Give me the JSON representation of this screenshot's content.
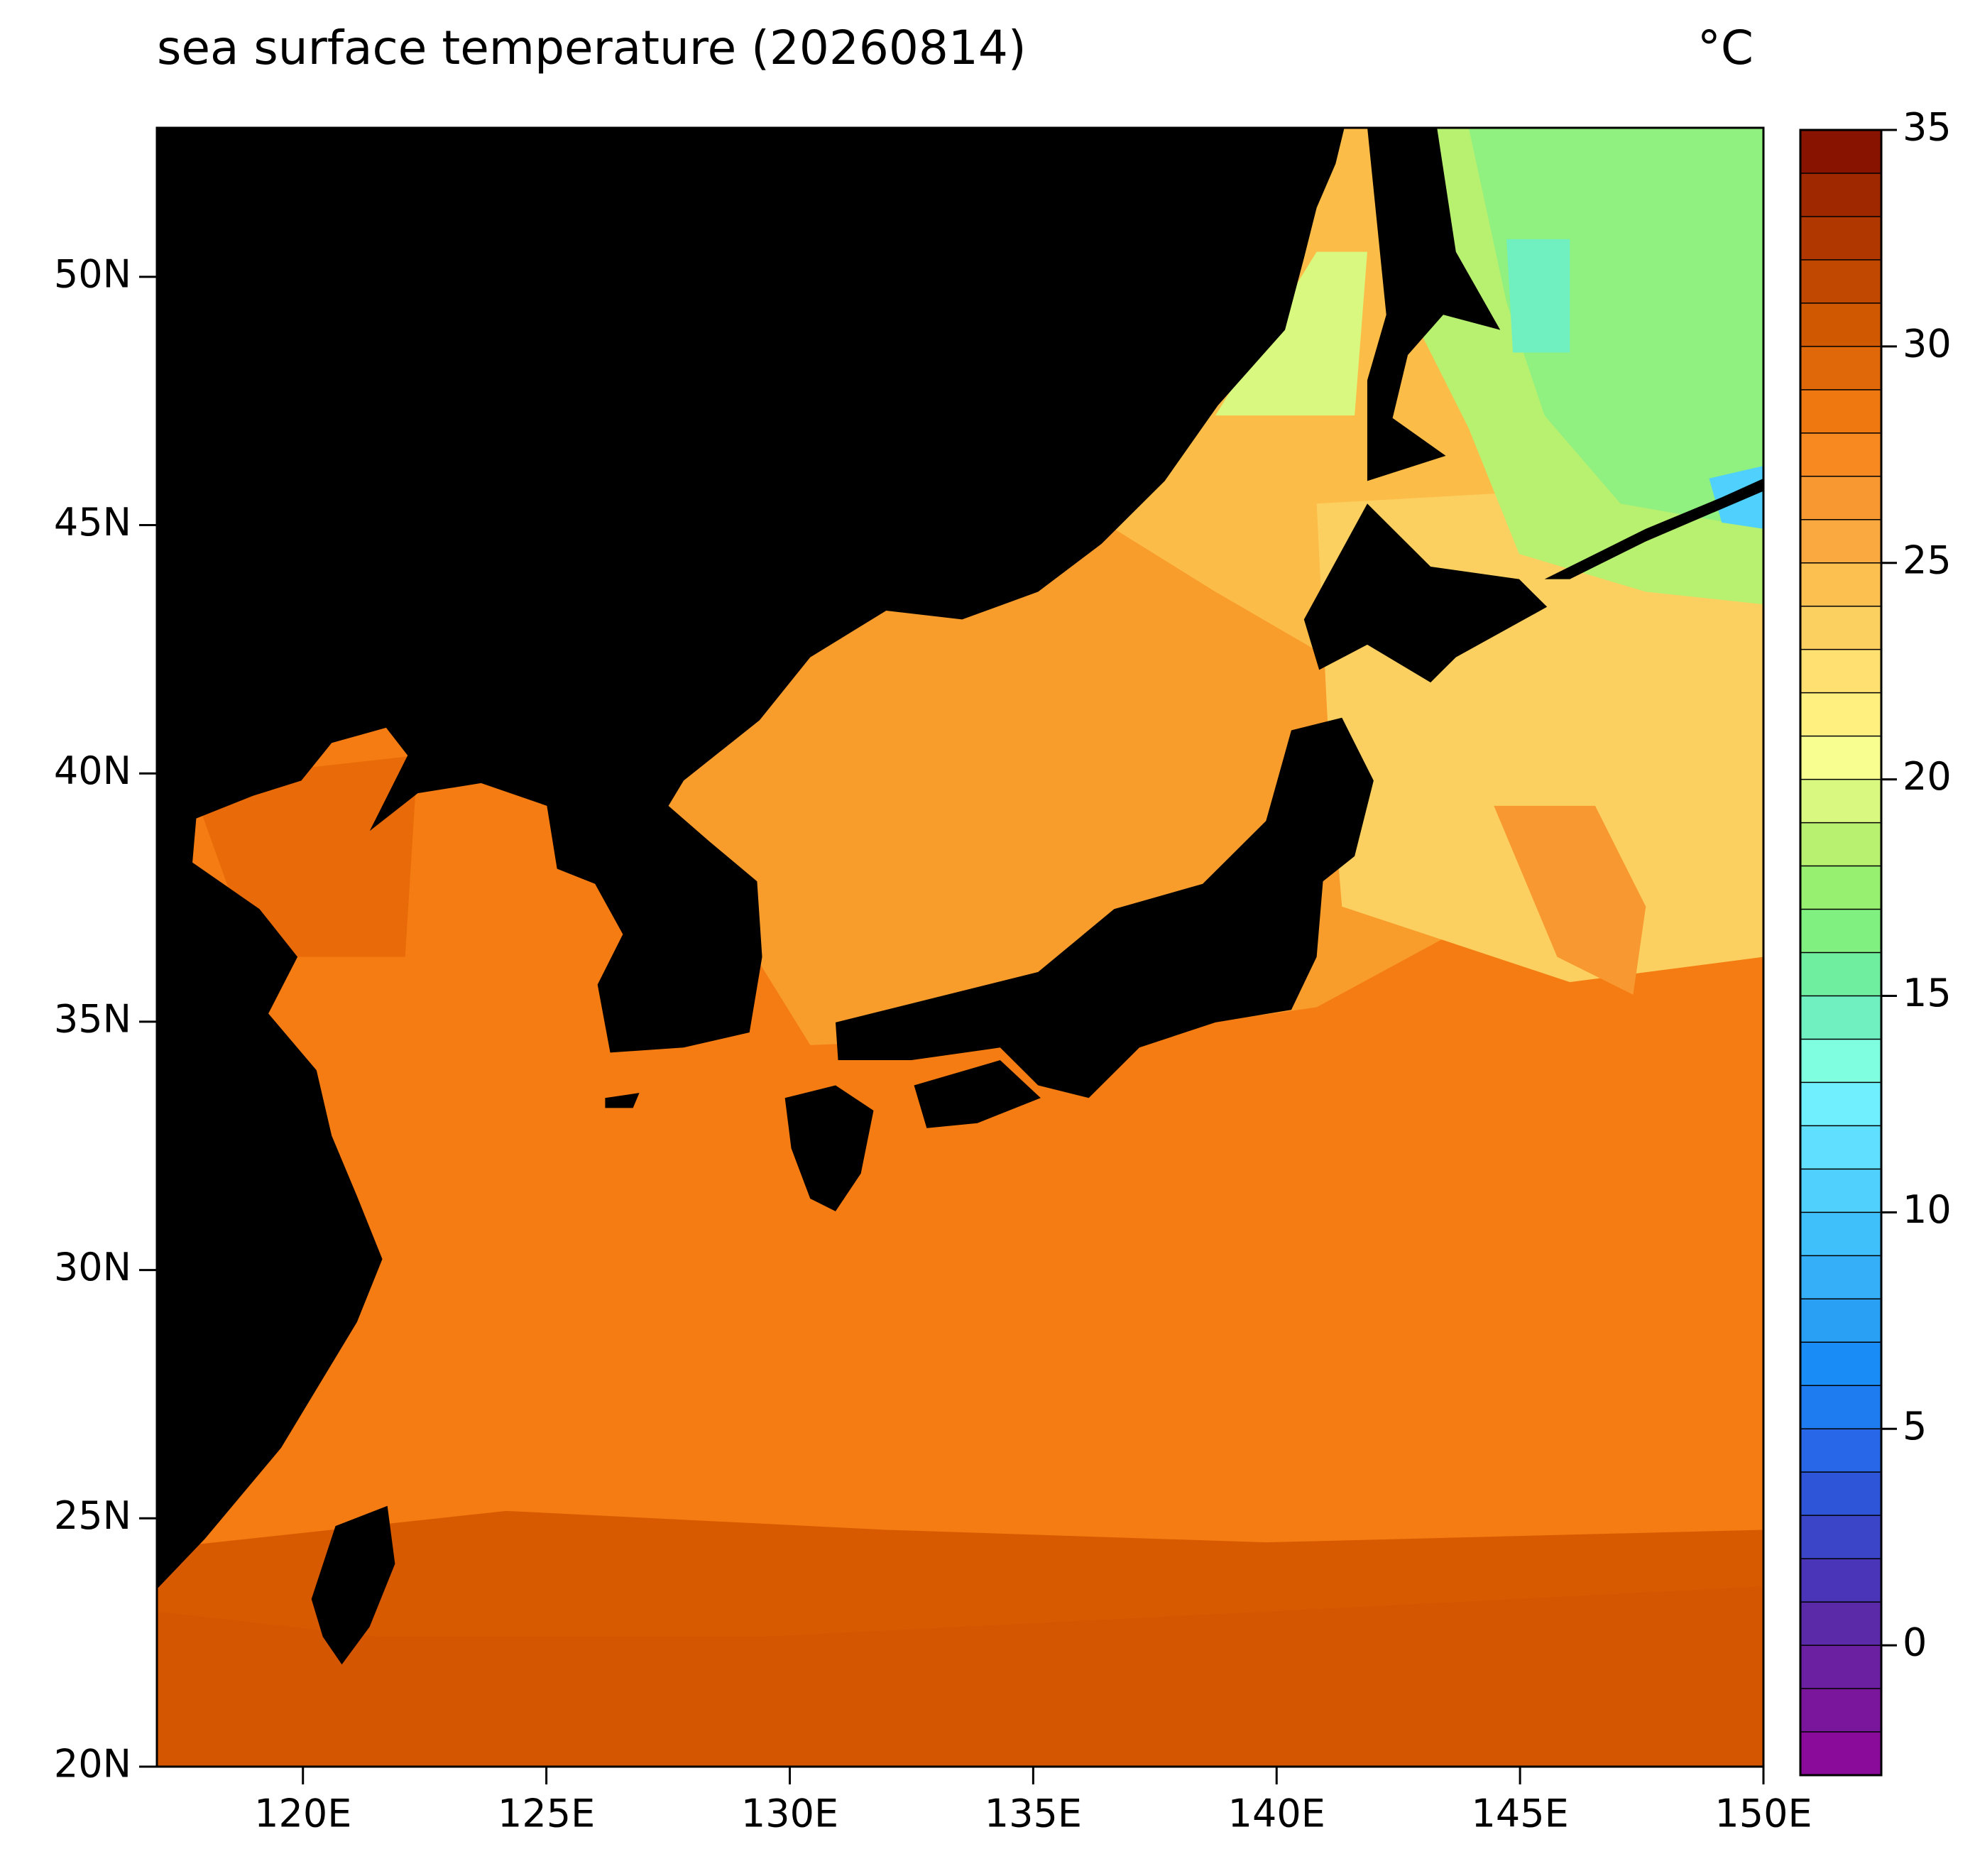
{
  "chart_data": {
    "type": "map",
    "title": "sea surface temperature (20260814)",
    "unit": "°C",
    "xlim": [
      117,
      150
    ],
    "ylim": [
      20,
      53
    ],
    "xticks": [
      {
        "value": 120,
        "label": "120E"
      },
      {
        "value": 125,
        "label": "125E"
      },
      {
        "value": 130,
        "label": "130E"
      },
      {
        "value": 135,
        "label": "135E"
      },
      {
        "value": 140,
        "label": "140E"
      },
      {
        "value": 145,
        "label": "145E"
      },
      {
        "value": 150,
        "label": "150E"
      }
    ],
    "yticks": [
      {
        "value": 20,
        "label": "20N"
      },
      {
        "value": 25,
        "label": "25N"
      },
      {
        "value": 30,
        "label": "30N"
      },
      {
        "value": 35,
        "label": "35N"
      },
      {
        "value": 40,
        "label": "40N"
      },
      {
        "value": 45,
        "label": "45N"
      },
      {
        "value": 50,
        "label": "50N"
      }
    ],
    "colorbar": {
      "clim": [
        -3,
        35
      ],
      "ticks": [
        0,
        5,
        10,
        15,
        20,
        25,
        30,
        35
      ],
      "colors": [
        "#8a0a9a",
        "#7a169c",
        "#6a20a0",
        "#5a2aa8",
        "#4a35b8",
        "#3a45c8",
        "#2e55d8",
        "#2868e8",
        "#1e7cf0",
        "#1a8cf5",
        "#2aa0f5",
        "#35b0f8",
        "#40c0fa",
        "#50d0fc",
        "#60e0fe",
        "#70f0ff",
        "#80ffe0",
        "#70f0c0",
        "#70eea0",
        "#80f080",
        "#98f070",
        "#b8f070",
        "#d8f880",
        "#f8ff90",
        "#fff080",
        "#ffe070",
        "#fcd060",
        "#fcc050",
        "#faa840",
        "#f89830",
        "#f88820",
        "#f07810",
        "#e06808",
        "#d05800",
        "#c04800",
        "#b03800",
        "#a02800",
        "#881400"
      ]
    }
  }
}
